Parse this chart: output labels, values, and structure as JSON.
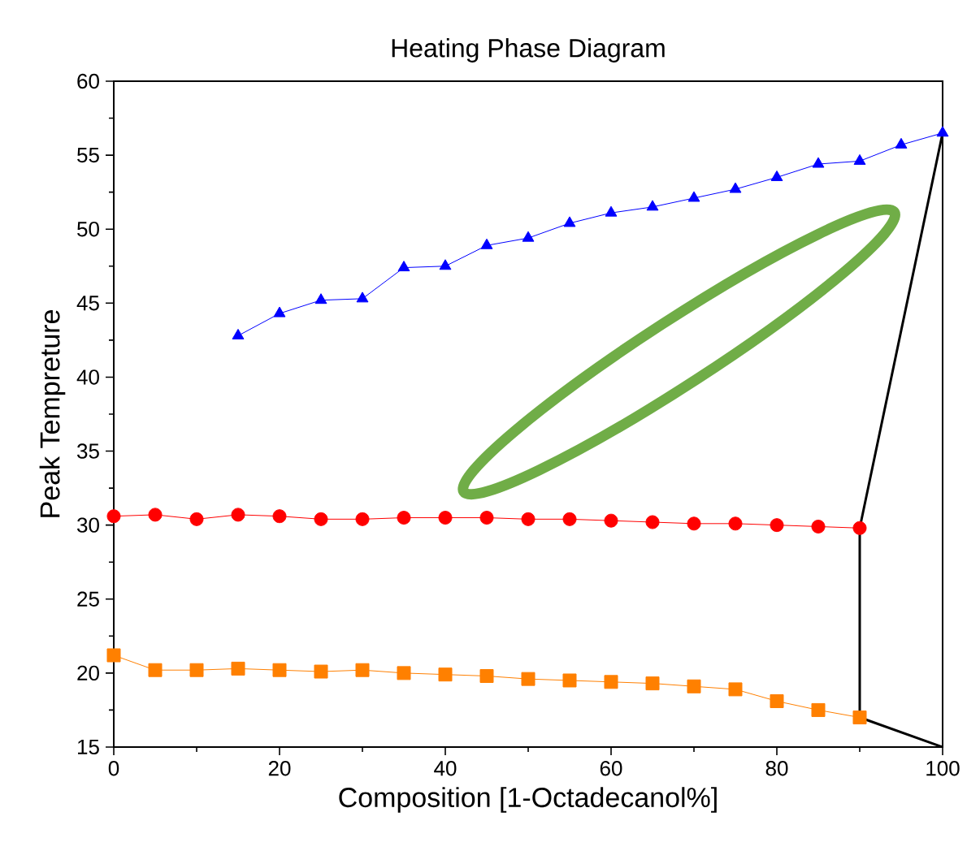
{
  "chart_data": {
    "type": "line",
    "title": "Heating Phase Diagram",
    "xlabel": "Composition [1-Octadecanol%]",
    "ylabel": "Peak Tempreture",
    "xlim": [
      0,
      100
    ],
    "ylim": [
      15,
      60
    ],
    "xticks": [
      0,
      20,
      40,
      60,
      80,
      100
    ],
    "yticks": [
      15,
      20,
      25,
      30,
      35,
      40,
      45,
      50,
      55,
      60
    ],
    "series": [
      {
        "color": "#0000ff",
        "marker": "triangle",
        "x": [
          15,
          20,
          25,
          30,
          35,
          40,
          45,
          50,
          55,
          60,
          65,
          70,
          75,
          80,
          85,
          90,
          95,
          100
        ],
        "values": [
          42.8,
          44.3,
          45.2,
          45.3,
          47.4,
          47.5,
          48.9,
          49.4,
          50.4,
          51.1,
          51.5,
          52.1,
          52.7,
          53.5,
          54.4,
          54.6,
          55.7,
          56.5
        ]
      },
      {
        "color": "#ff0000",
        "marker": "circle",
        "x": [
          0,
          5,
          10,
          15,
          20,
          25,
          30,
          35,
          40,
          45,
          50,
          55,
          60,
          65,
          70,
          75,
          80,
          85,
          90
        ],
        "values": [
          30.6,
          30.7,
          30.4,
          30.7,
          30.6,
          30.4,
          30.4,
          30.5,
          30.5,
          30.5,
          30.4,
          30.4,
          30.3,
          30.2,
          30.1,
          30.1,
          30.0,
          29.9,
          29.8
        ]
      },
      {
        "color": "#ff8000",
        "marker": "square",
        "x": [
          0,
          5,
          10,
          15,
          20,
          25,
          30,
          35,
          40,
          45,
          50,
          55,
          60,
          65,
          70,
          75,
          80,
          85,
          90
        ],
        "values": [
          21.2,
          20.2,
          20.2,
          20.3,
          20.2,
          20.1,
          20.2,
          20.0,
          19.9,
          19.8,
          19.6,
          19.5,
          19.4,
          19.3,
          19.1,
          18.9,
          18.1,
          17.5,
          17.0
        ]
      },
      {
        "color": "#000000",
        "marker": "none",
        "x": [
          100,
          90,
          90,
          100
        ],
        "values": [
          56.5,
          29.8,
          17.0,
          15
        ]
      }
    ]
  }
}
